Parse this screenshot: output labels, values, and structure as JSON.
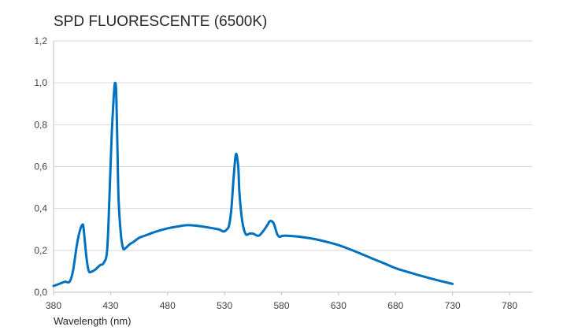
{
  "chart_data": {
    "type": "line",
    "title": "SPD FLUORESCENTE (6500K)",
    "xlabel": "Wavelength (nm)",
    "ylabel": "",
    "xlim": [
      380,
      800
    ],
    "ylim": [
      0,
      1.2
    ],
    "x_ticks": [
      380,
      430,
      480,
      530,
      580,
      630,
      680,
      730,
      780
    ],
    "x_tick_labels": [
      "380",
      "430",
      "480",
      "530",
      "580",
      "630",
      "680",
      "730",
      "780"
    ],
    "y_ticks": [
      0,
      0.2,
      0.4,
      0.6,
      0.8,
      1.0,
      1.2
    ],
    "y_tick_labels": [
      "0,0",
      "0,2",
      "0,4",
      "0,6",
      "0,8",
      "1,0",
      "1,2"
    ],
    "grid": true,
    "legend": "none",
    "series": [
      {
        "color": "#0070c0",
        "x": [
          380,
          385,
          390,
          394,
          397,
          400,
          402,
          404,
          405,
          406,
          407,
          409,
          411,
          414,
          417,
          421,
          424,
          427,
          429,
          431,
          433,
          434,
          435,
          436,
          437,
          439,
          441,
          443,
          445,
          447,
          450,
          455,
          460,
          470,
          480,
          490,
          497,
          505,
          515,
          525,
          529,
          532,
          534,
          536,
          538,
          540,
          542,
          543,
          545,
          547,
          549,
          552,
          555,
          560,
          565,
          568,
          570,
          573,
          576,
          578,
          580,
          582,
          585,
          590,
          600,
          610,
          620,
          630,
          640,
          650,
          660,
          670,
          680,
          690,
          700,
          710,
          720,
          730
        ],
        "y": [
          0.03,
          0.04,
          0.05,
          0.05,
          0.1,
          0.21,
          0.27,
          0.31,
          0.32,
          0.32,
          0.27,
          0.16,
          0.1,
          0.1,
          0.11,
          0.13,
          0.14,
          0.2,
          0.45,
          0.75,
          0.95,
          1.0,
          0.95,
          0.7,
          0.45,
          0.28,
          0.21,
          0.21,
          0.22,
          0.23,
          0.24,
          0.26,
          0.27,
          0.29,
          0.305,
          0.315,
          0.32,
          0.318,
          0.31,
          0.3,
          0.29,
          0.3,
          0.32,
          0.4,
          0.55,
          0.66,
          0.6,
          0.48,
          0.36,
          0.3,
          0.275,
          0.28,
          0.28,
          0.27,
          0.3,
          0.325,
          0.34,
          0.33,
          0.28,
          0.265,
          0.268,
          0.27,
          0.27,
          0.268,
          0.262,
          0.253,
          0.24,
          0.225,
          0.205,
          0.183,
          0.16,
          0.138,
          0.115,
          0.098,
          0.082,
          0.067,
          0.053,
          0.04
        ]
      }
    ]
  }
}
